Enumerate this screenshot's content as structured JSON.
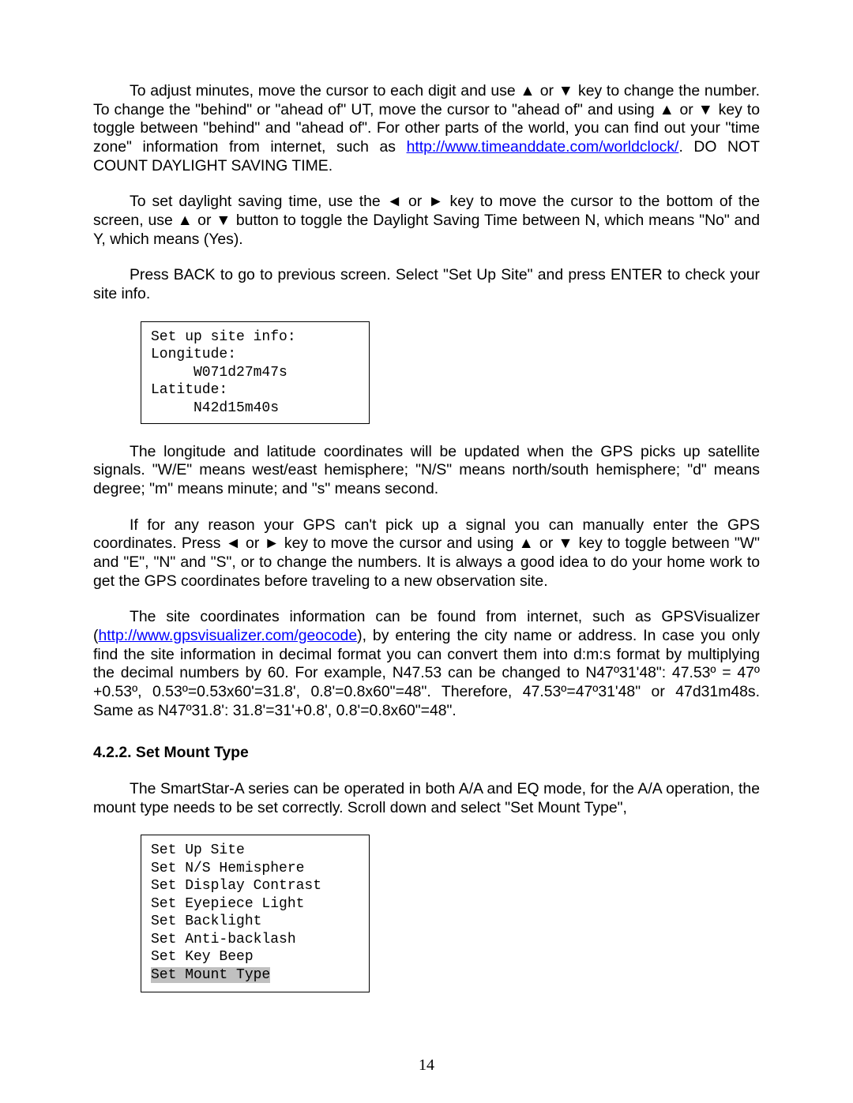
{
  "para1_pre": "To adjust minutes, move the cursor to each digit and use ▲ or ▼ key to change the number. To change the \"behind\" or \"ahead of\" UT, move the cursor to \"ahead of\" and using ▲ or ▼ key to toggle between \"behind\" and \"ahead of\". For other parts of the world, you can find out your \"time zone\" information from internet, such as ",
  "para1_link": "http://www.timeanddate.com/worldclock/",
  "para1_post": ". DO NOT COUNT DAYLIGHT SAVING TIME.",
  "para2": "To set daylight saving time, use the ◄ or ► key to move the cursor to the bottom of the screen, use ▲ or ▼ button to toggle the Daylight Saving Time between N, which means \"No\" and Y, which means (Yes).",
  "para3": "Press BACK to go to previous screen. Select \"Set Up Site\" and press ENTER to check your site info.",
  "screen1_l1": "Set up site info:",
  "screen1_l2": "Longitude:",
  "screen1_l3": "     W071d27m47s",
  "screen1_l4": "Latitude:",
  "screen1_l5": "     N42d15m40s",
  "para4": "The longitude and latitude coordinates will be updated when the GPS picks up satellite signals. \"W/E\" means west/east hemisphere; \"N/S\" means north/south hemisphere; \"d\" means degree; \"m\" means minute; and \"s\" means second.",
  "para5": "If for any reason your GPS can't pick up a signal you can manually enter the GPS coordinates. Press ◄ or ► key to move the cursor and using ▲ or ▼ key to toggle between \"W\" and \"E\", \"N\" and \"S\", or to change the numbers. It is always a good idea to do your home work to get the GPS coordinates before traveling to a new observation site.",
  "para6_pre": "The site coordinates information can be found from internet, such as GPSVisualizer (",
  "para6_link": "http://www.gpsvisualizer.com/geocode",
  "para6_post": "), by entering the city name or address. In case you only find the site information in decimal format you can convert them into d:m:s format by multiplying the decimal numbers by 60. For example, N47.53 can be changed to N47º31'48\": 47.53º = 47º +0.53º, 0.53º=0.53x60'=31.8', 0.8'=0.8x60\"=48\". Therefore, 47.53º=47º31'48\" or 47d31m48s. Same as N47º31.8': 31.8'=31'+0.8', 0.8'=0.8x60\"=48\".",
  "heading": "4.2.2. Set Mount Type",
  "para7": "The SmartStar-A series can be operated in both A/A and EQ mode, for the A/A operation, the mount type needs to be set correctly. Scroll down and select \"Set Mount Type\",",
  "menu_l1": "Set Up Site",
  "menu_l2": "Set N/S Hemisphere",
  "menu_l3": "Set Display Contrast",
  "menu_l4": "Set Eyepiece Light",
  "menu_l5": "Set Backlight",
  "menu_l6": "Set Anti-backlash",
  "menu_l7": "Set Key Beep",
  "menu_l8": "Set Mount Type",
  "page_number": "14"
}
